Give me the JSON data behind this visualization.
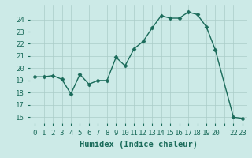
{
  "x": [
    0,
    1,
    2,
    3,
    4,
    5,
    6,
    7,
    8,
    9,
    10,
    11,
    12,
    13,
    14,
    15,
    16,
    17,
    18,
    19,
    20,
    22,
    23
  ],
  "y": [
    19.3,
    19.3,
    19.4,
    19.1,
    17.9,
    19.5,
    18.7,
    19.0,
    19.0,
    20.9,
    20.2,
    21.6,
    22.2,
    23.3,
    24.3,
    24.1,
    24.1,
    24.6,
    24.4,
    23.4,
    21.5,
    16.0,
    15.9
  ],
  "line_color": "#1a6b5a",
  "marker": "D",
  "marker_size": 2.5,
  "bg_color": "#cceae7",
  "grid_color": "#aaccc8",
  "xlabel": "Humidex (Indice chaleur)",
  "xlabel_fontsize": 7.5,
  "xlabel_fontweight": "bold",
  "ylim": [
    15.5,
    25.2
  ],
  "yticks": [
    16,
    17,
    18,
    19,
    20,
    21,
    22,
    23,
    24
  ],
  "xtick_positions": [
    0,
    1,
    2,
    3,
    4,
    5,
    6,
    7,
    8,
    9,
    10,
    11,
    12,
    13,
    14,
    15,
    16,
    17,
    18,
    19,
    20,
    21,
    22,
    23
  ],
  "xtick_labels": [
    "0",
    "1",
    "2",
    "3",
    "4",
    "5",
    "6",
    "7",
    "8",
    "9",
    "10",
    "11",
    "12",
    "13",
    "14",
    "15",
    "16",
    "17",
    "18",
    "19",
    "20",
    "",
    "22",
    "23"
  ],
  "tick_fontsize": 6.5,
  "line_width": 1.0,
  "xlim": [
    -0.5,
    23.5
  ]
}
